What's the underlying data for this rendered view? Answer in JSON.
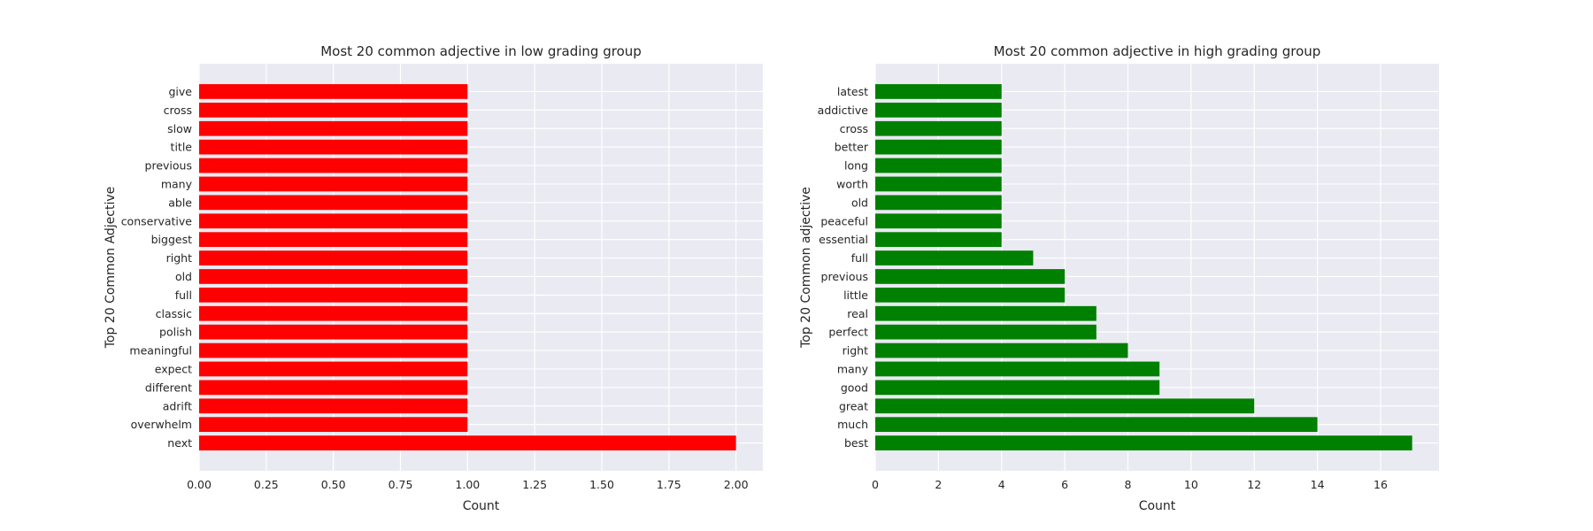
{
  "chart_data": [
    {
      "type": "bar",
      "orientation": "horizontal",
      "title": "Most 20 common adjective in low grading group",
      "xlabel": "Count",
      "ylabel": "Top 20 Common Adjective",
      "color": "#ff0000",
      "background": "#eaeaf2",
      "grid": true,
      "xlim": [
        0,
        2.1
      ],
      "xticks": [
        "0.00",
        "0.25",
        "0.50",
        "0.75",
        "1.00",
        "1.25",
        "1.50",
        "1.75",
        "2.00"
      ],
      "categories": [
        "next",
        "overwhelm",
        "adrift",
        "different",
        "expect",
        "meaningful",
        "polish",
        "classic",
        "full",
        "old",
        "right",
        "biggest",
        "conservative",
        "able",
        "many",
        "previous",
        "title",
        "slow",
        "cross",
        "give"
      ],
      "values": [
        2,
        1,
        1,
        1,
        1,
        1,
        1,
        1,
        1,
        1,
        1,
        1,
        1,
        1,
        1,
        1,
        1,
        1,
        1,
        1
      ]
    },
    {
      "type": "bar",
      "orientation": "horizontal",
      "title": "Most 20 common adjective in high grading group",
      "xlabel": "Count",
      "ylabel": "Top 20 Common adjective",
      "color": "#008000",
      "background": "#eaeaf2",
      "grid": true,
      "xlim": [
        0,
        17.85
      ],
      "xticks": [
        "0",
        "2",
        "4",
        "6",
        "8",
        "10",
        "12",
        "14",
        "16"
      ],
      "categories": [
        "best",
        "much",
        "great",
        "good",
        "many",
        "right",
        "perfect",
        "real",
        "little",
        "previous",
        "full",
        "essential",
        "peaceful",
        "old",
        "worth",
        "long",
        "better",
        "cross",
        "addictive",
        "latest"
      ],
      "values": [
        17,
        14,
        12,
        9,
        9,
        8,
        7,
        7,
        6,
        6,
        5,
        4,
        4,
        4,
        4,
        4,
        4,
        4,
        4,
        4
      ]
    }
  ]
}
